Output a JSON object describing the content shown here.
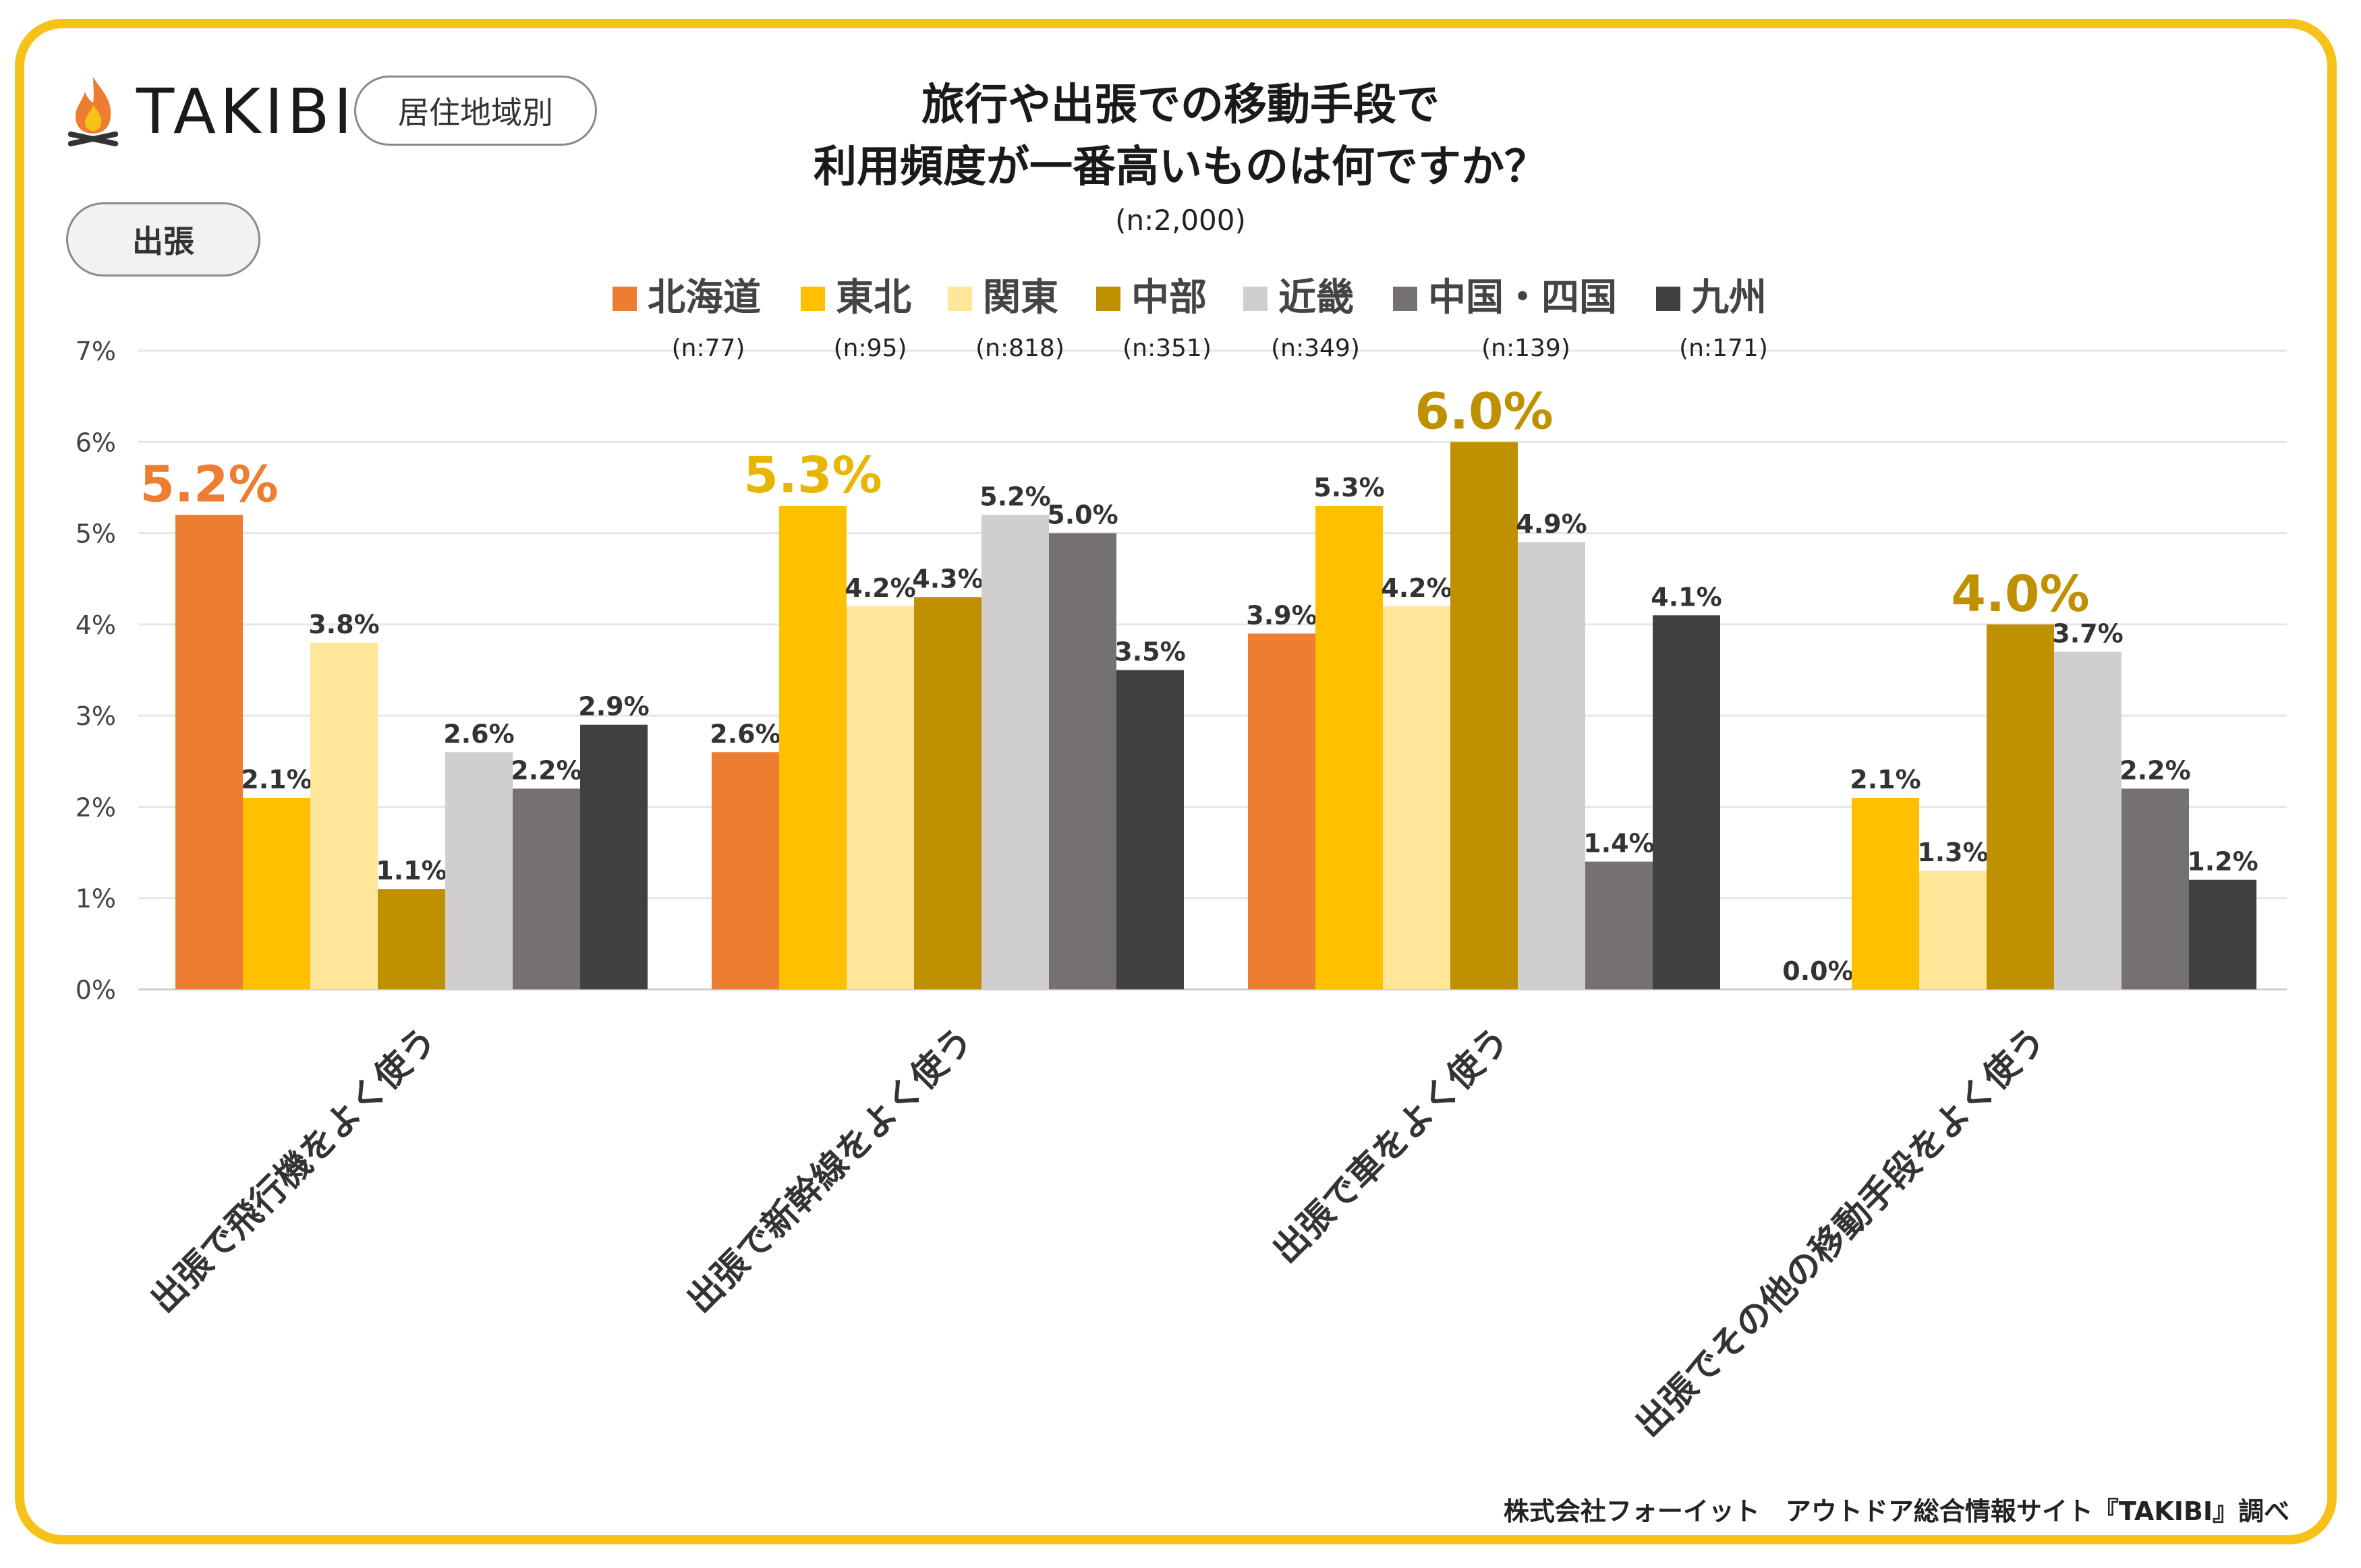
{
  "brand": {
    "name": "TAKIBI",
    "logo_icon": "campfire-icon"
  },
  "tags": {
    "region": "居住地域別",
    "purpose": "出張"
  },
  "header": {
    "title_line1": "旅行や出張での移動手段で",
    "title_line2": "利用頻度が一番高いものは何ですか？",
    "sample": "(n:2,000)"
  },
  "footer": {
    "credit": "株式会社フォーイット　アウトドア総合情報サイト『TAKIBI』調べ"
  },
  "chart_data": {
    "type": "bar",
    "title": "旅行や出張での移動手段で利用頻度が一番高いものは何ですか？",
    "xlabel": "",
    "ylabel": "",
    "ylim": [
      0,
      7
    ],
    "yticks": [
      "0%",
      "1%",
      "2%",
      "3%",
      "4%",
      "5%",
      "6%",
      "7%"
    ],
    "grid": true,
    "legend_position": "top",
    "categories": [
      "出張で飛行機をよく使う",
      "出張で新幹線をよく使う",
      "出張で車をよく使う",
      "出張でその他の移動手段をよく使う"
    ],
    "series": [
      {
        "name": "北海道",
        "n": "(n:77)",
        "color": "#ed7d31",
        "values": [
          5.2,
          2.6,
          3.9,
          0.0
        ]
      },
      {
        "name": "東北",
        "n": "(n:95)",
        "color": "#ffc000",
        "values": [
          2.1,
          5.3,
          5.3,
          2.1
        ]
      },
      {
        "name": "関東",
        "n": "(n:818)",
        "color": "#ffe699",
        "values": [
          3.8,
          4.2,
          4.2,
          1.3
        ]
      },
      {
        "name": "中部",
        "n": "(n:351)",
        "color": "#bf9000",
        "values": [
          1.1,
          4.3,
          6.0,
          4.0
        ]
      },
      {
        "name": "近畿",
        "n": "(n:349)",
        "color": "#d0cece",
        "values": [
          2.6,
          5.2,
          4.9,
          3.7
        ]
      },
      {
        "name": "中国・四国",
        "n": "(n:139)",
        "color": "#767171",
        "values": [
          2.2,
          5.0,
          1.4,
          2.2
        ]
      },
      {
        "name": "九州",
        "n": "(n:171)",
        "color": "#404040",
        "values": [
          2.9,
          3.5,
          4.1,
          1.2
        ]
      }
    ],
    "highlights": [
      {
        "category": 0,
        "series": 0,
        "label": "5.2%",
        "color": "#ed7d31"
      },
      {
        "category": 1,
        "series": 1,
        "label": "5.3%",
        "color": "#e8b500"
      },
      {
        "category": 2,
        "series": 3,
        "label": "6.0%",
        "color": "#bf9000"
      },
      {
        "category": 3,
        "series": 3,
        "label": "4.0%",
        "color": "#bf9000"
      }
    ]
  }
}
